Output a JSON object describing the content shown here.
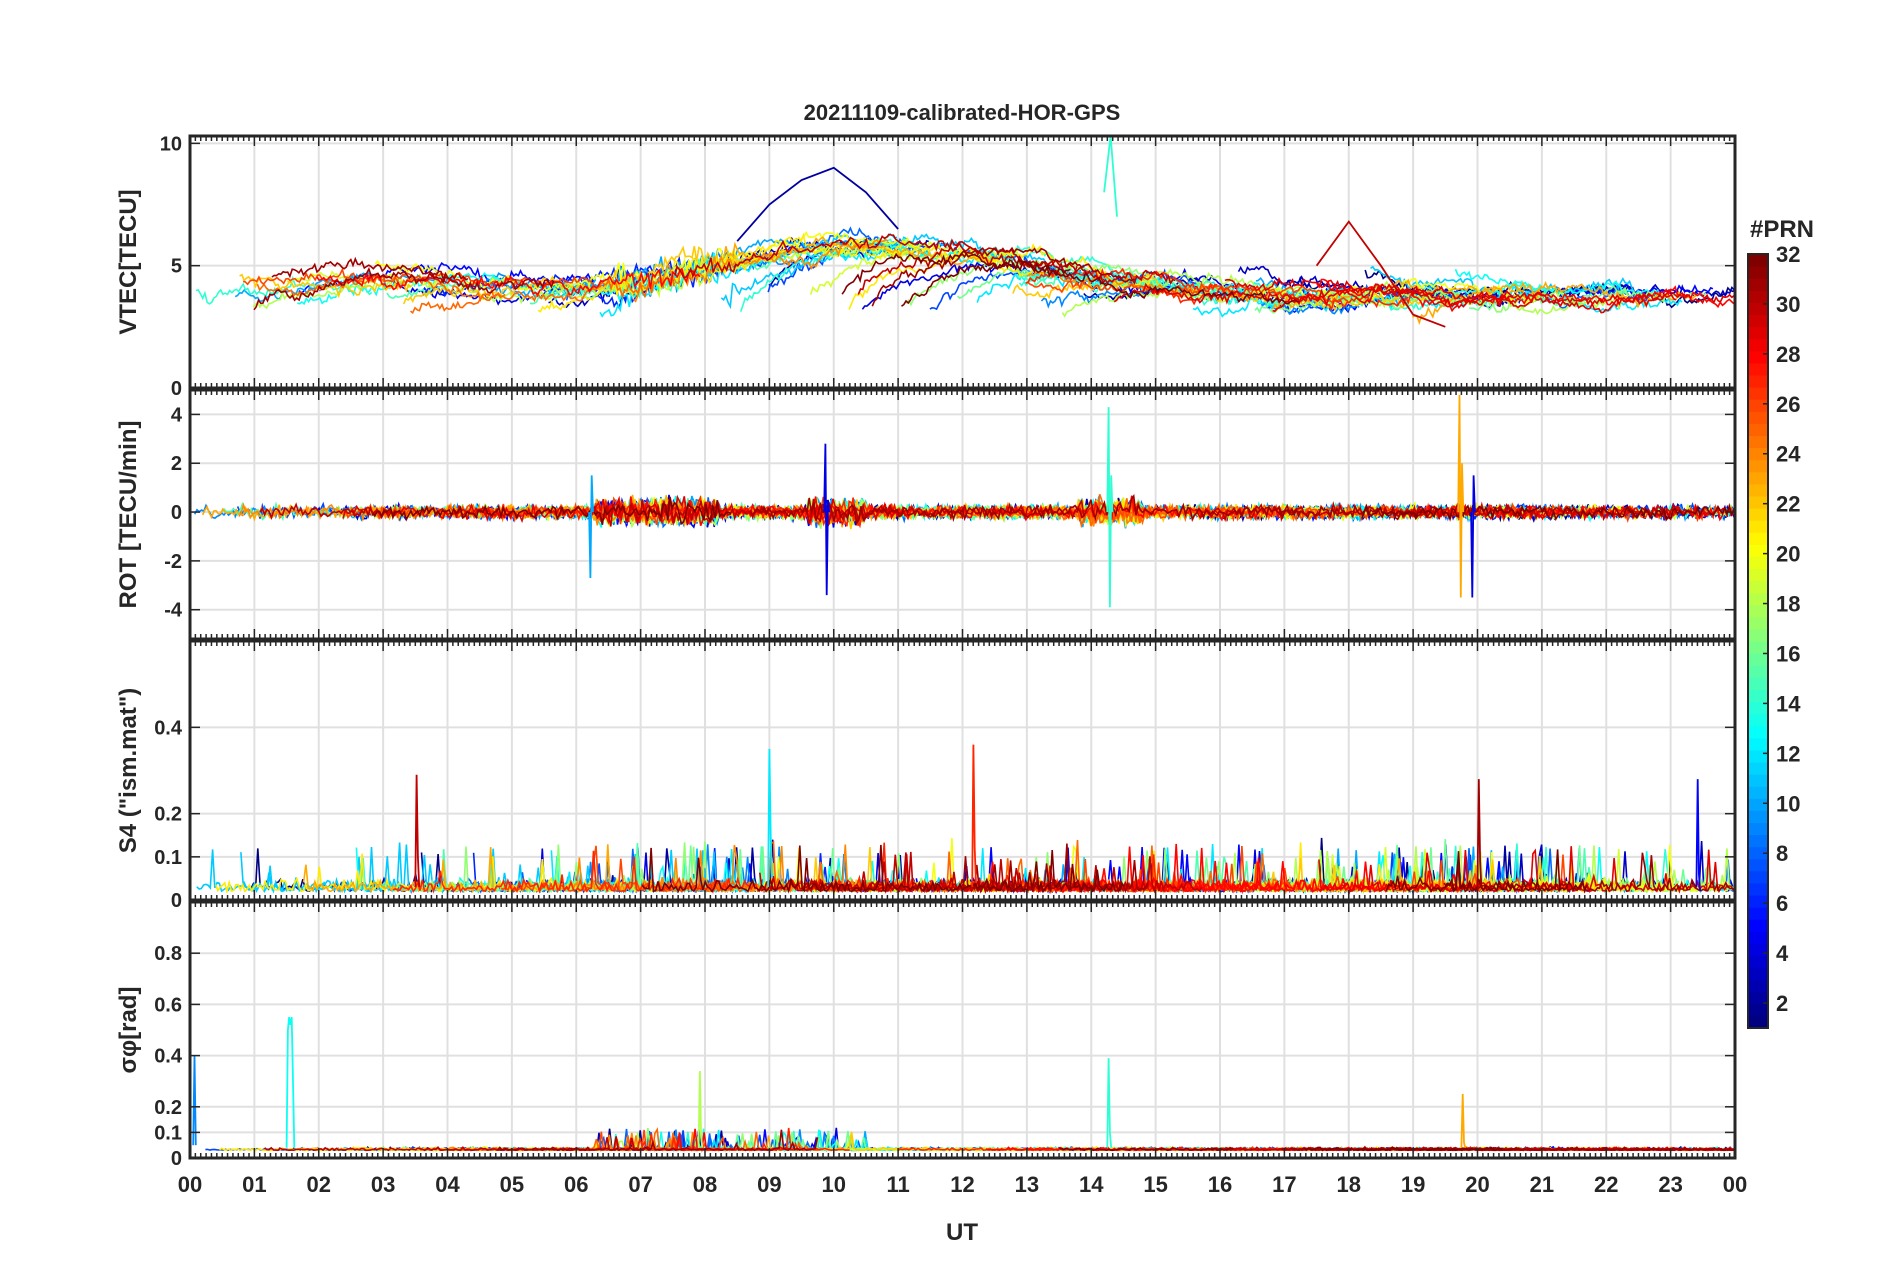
{
  "chart_data": {
    "type": "line",
    "title": "20211109-calibrated-HOR-GPS",
    "xlabel": "UT",
    "x_range": [
      0,
      24
    ],
    "x_tick_labels": [
      "00",
      "01",
      "02",
      "03",
      "04",
      "05",
      "06",
      "07",
      "08",
      "09",
      "10",
      "11",
      "12",
      "13",
      "14",
      "15",
      "16",
      "17",
      "18",
      "19",
      "20",
      "21",
      "22",
      "23",
      "00"
    ],
    "colorbar": {
      "label": "#PRN",
      "range": [
        1,
        32
      ],
      "tick_labels": [
        "2",
        "4",
        "6",
        "8",
        "10",
        "12",
        "14",
        "16",
        "18",
        "20",
        "22",
        "24",
        "26",
        "28",
        "30",
        "32"
      ],
      "colormap": "jet"
    },
    "panels": [
      {
        "name": "vtec",
        "ylabel": "VTEC[TECU]",
        "ylim": [
          0,
          10.3
        ],
        "yticks": [
          0,
          5,
          10
        ],
        "ytick_labels": [
          "0",
          "5",
          "10"
        ],
        "series_note": "one trace per PRN, values approx 1-10 TECU, diurnal bulge around 07-14 UT",
        "series_samples": [
          {
            "prn": 2,
            "x": [
              8.5,
              9.0,
              9.5,
              10.0,
              10.5,
              11.0
            ],
            "y": [
              6.0,
              7.5,
              8.5,
              9.0,
              8.0,
              6.5
            ]
          },
          {
            "prn": 30,
            "x": [
              17.5,
              18.0,
              18.5,
              19.0,
              19.5
            ],
            "y": [
              5.0,
              6.8,
              5.0,
              3.0,
              2.5
            ]
          },
          {
            "prn": 14,
            "x": [
              14.2,
              14.3,
              14.4
            ],
            "y": [
              8.0,
              10.3,
              7.0
            ]
          }
        ]
      },
      {
        "name": "rot",
        "ylabel": "ROT [TECU/min]",
        "ylim": [
          -5.2,
          5.0
        ],
        "yticks": [
          -4,
          -2,
          0,
          2,
          4
        ],
        "ytick_labels": [
          "-4",
          "-2",
          "0",
          "2",
          "4"
        ],
        "series_note": "noise around 0, spikes near 10 UT (approx -3.5 / 2.8), 14.3 UT (approx 4.3 / -3.9), 19.8 UT (approx 4.8 / -3.5)"
      },
      {
        "name": "s4",
        "ylabel": "S4 (\"ism.mat\")",
        "ylim": [
          0,
          0.6
        ],
        "yticks": [
          0,
          0.1,
          0.2,
          0.4
        ],
        "ytick_labels": [
          "0",
          "0.1",
          "0.2",
          "0.4"
        ],
        "series_note": "values mostly 0.01-0.15, peaks ~0.35 near 9.0 UT and 12.2 UT, ~0.29 near 3.5 UT"
      },
      {
        "name": "sigma_phi",
        "ylabel": "σφ[rad]",
        "ylim": [
          0,
          1.0
        ],
        "yticks": [
          0,
          0.1,
          0.2,
          0.4,
          0.6,
          0.8
        ],
        "ytick_labels": [
          "0",
          "0.1",
          "0.2",
          "0.4",
          "0.6",
          "0.8"
        ],
        "series_note": "baseline ~0.03-0.05, burst ~0.55 near 1.5-1.7 UT (PRN 13), ~0.4 near 14.3 UT, ~0.34 near 7.9 UT, ~0.25 near 19.8 UT"
      }
    ]
  }
}
